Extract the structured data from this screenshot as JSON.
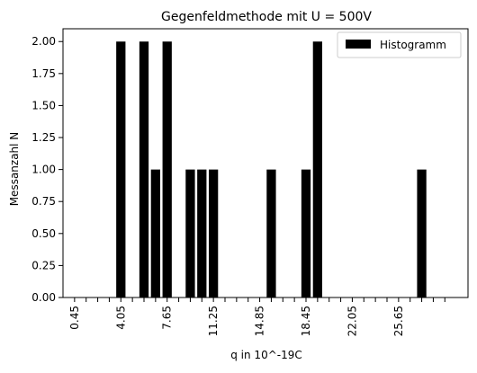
{
  "chart_data": {
    "type": "bar",
    "title": "Gegenfeldmethode mit U = 500V",
    "xlabel": "q in 10^-19C",
    "ylabel": "Messanzahl N",
    "legend": {
      "labels": [
        "Histogramm"
      ],
      "location": "top-right"
    },
    "grid": false,
    "bar_color": "#000000",
    "bin_start": 0.45,
    "bin_width": 0.9,
    "num_bins": 33,
    "x_tick_labels": [
      "0.45",
      "4.05",
      "7.65",
      "11.25",
      "14.85",
      "18.45",
      "22.05",
      "25.65"
    ],
    "x_tick_step_bins": 4,
    "ylim": [
      0,
      2.1
    ],
    "y_ticks": [
      "0.00",
      "0.25",
      "0.50",
      "0.75",
      "1.00",
      "1.25",
      "1.50",
      "1.75",
      "2.00"
    ],
    "series": [
      {
        "name": "Histogramm",
        "x": [
          4.05,
          5.85,
          6.75,
          7.65,
          9.45,
          10.35,
          11.25,
          15.75,
          18.45,
          19.35,
          27.45
        ],
        "values": [
          2,
          2,
          1,
          2,
          1,
          1,
          1,
          1,
          1,
          2,
          1
        ]
      }
    ]
  }
}
